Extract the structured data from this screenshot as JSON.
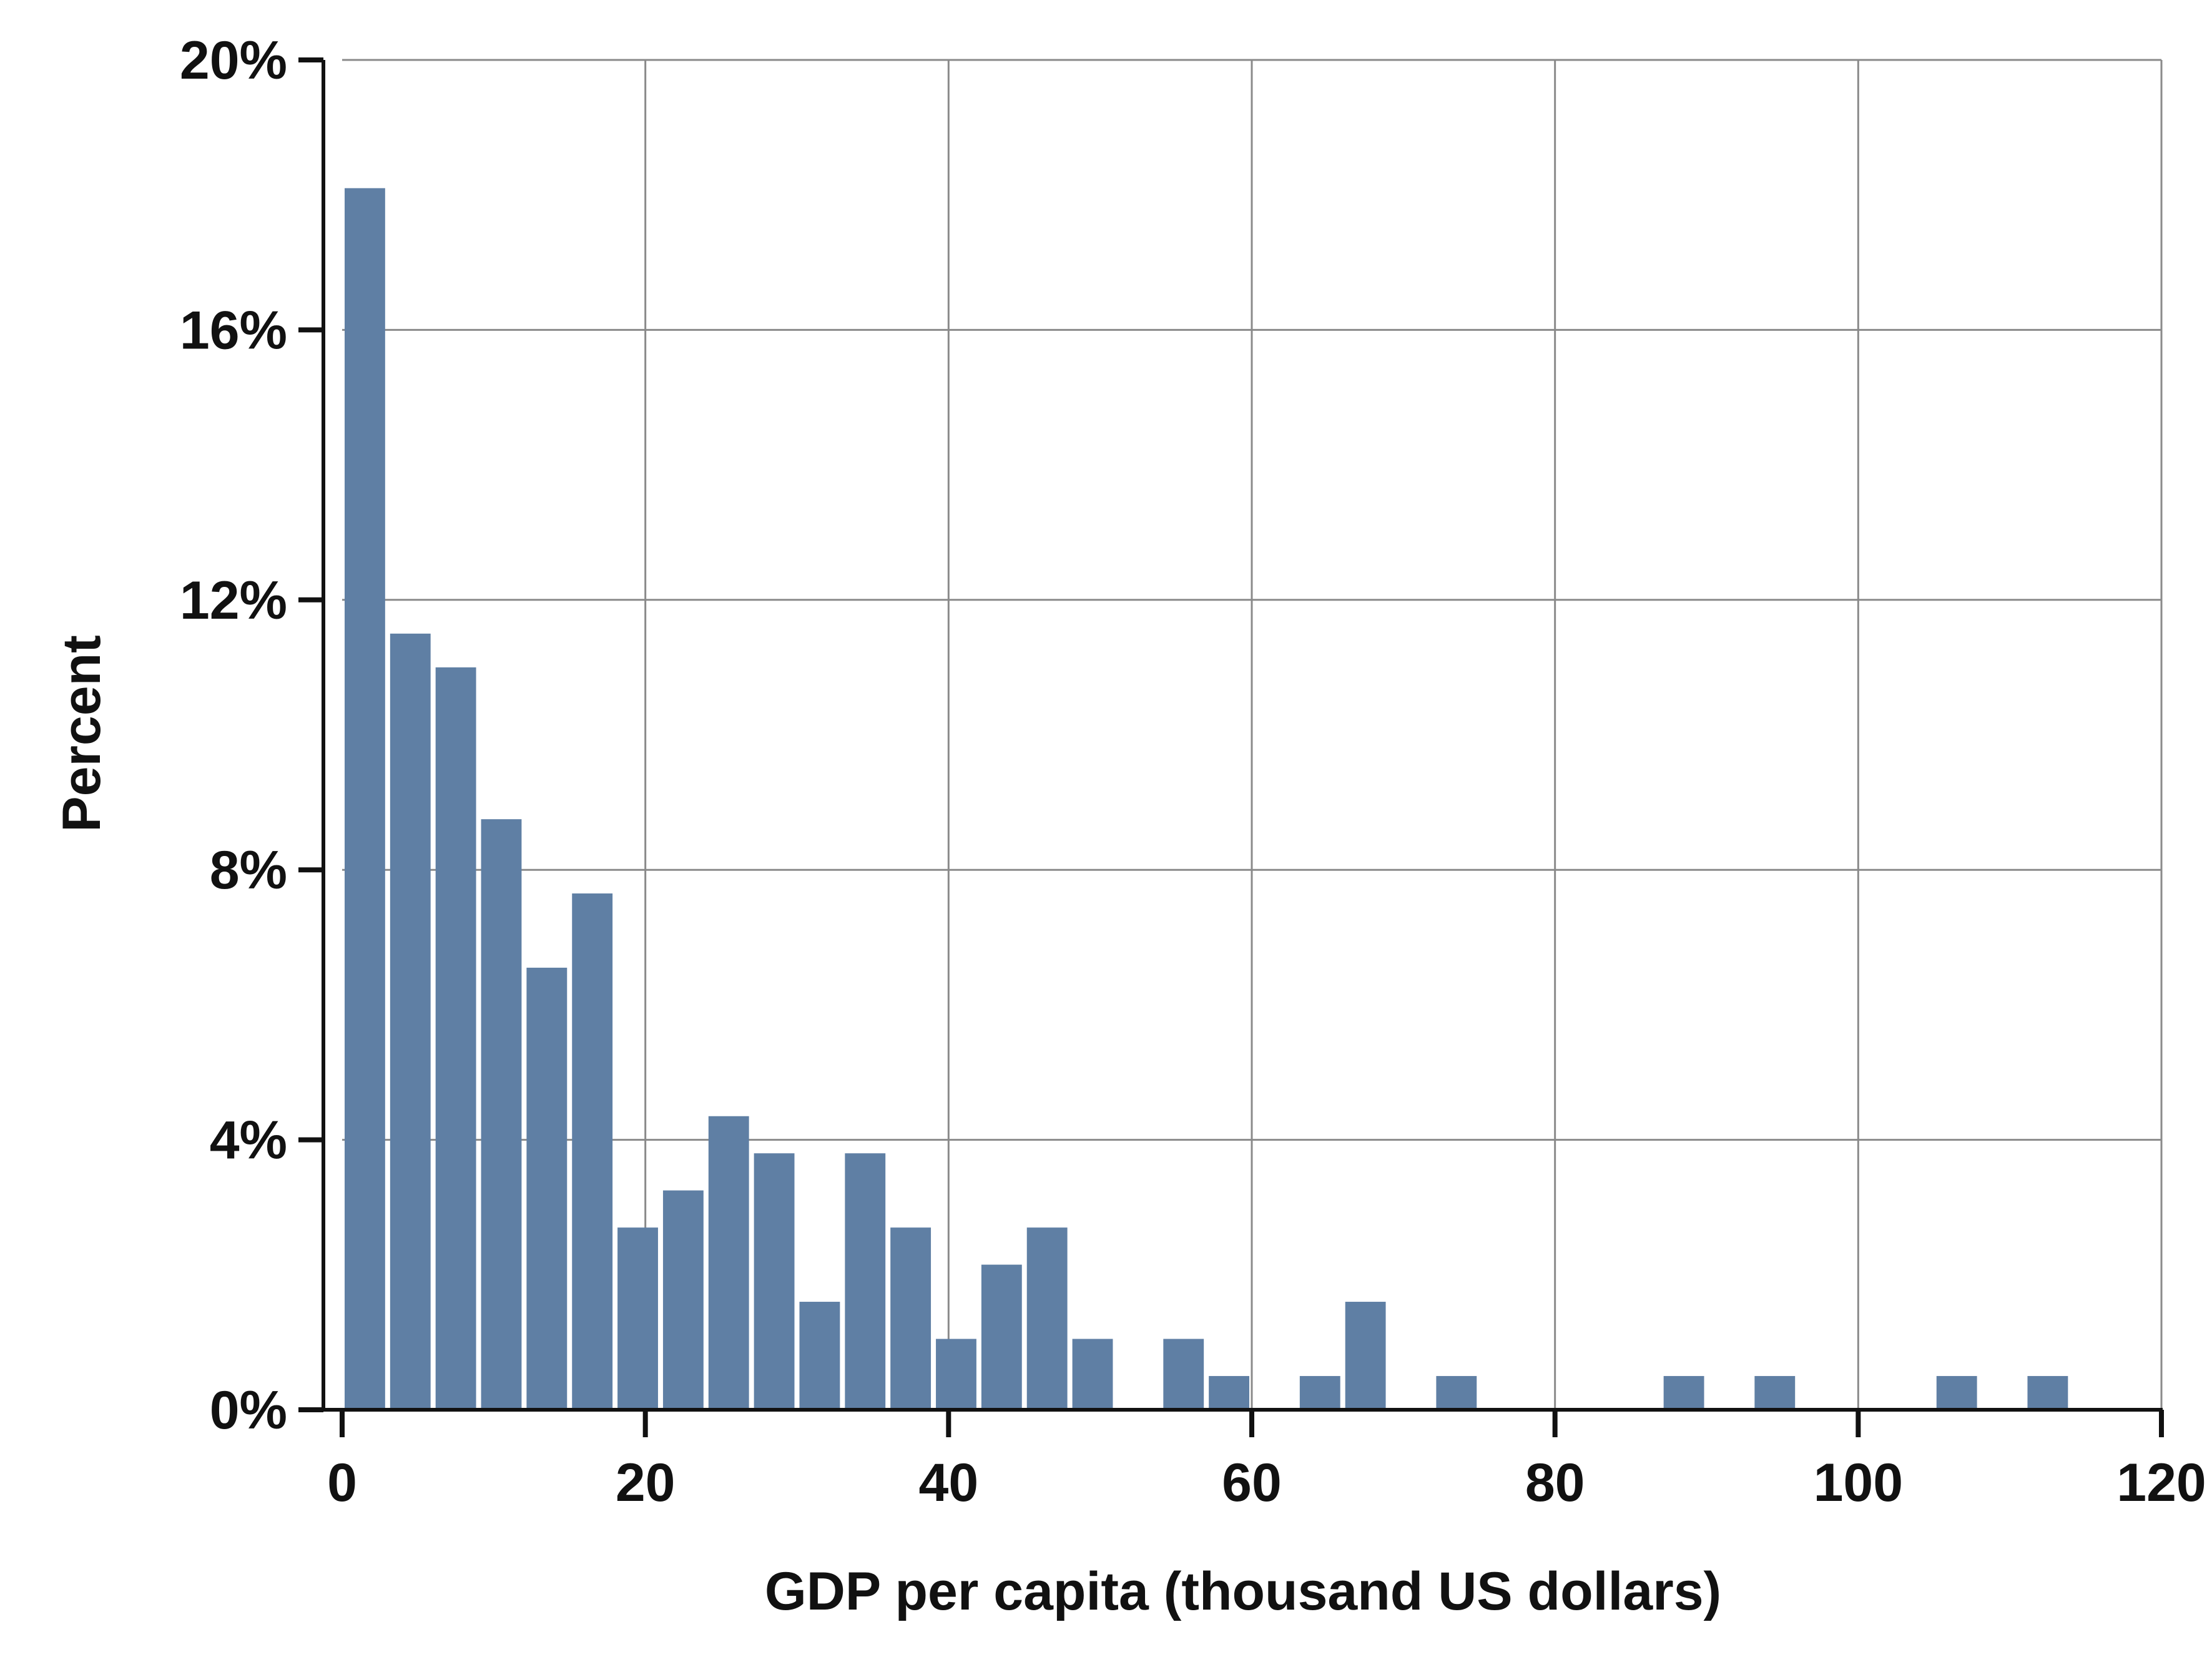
{
  "chart_data": {
    "type": "bar",
    "title": "",
    "xlabel": "GDP per capita (thousand US dollars)",
    "ylabel": "Percent",
    "xlim": [
      0,
      120
    ],
    "ylim": [
      0,
      20
    ],
    "x_ticks": [
      0,
      20,
      40,
      60,
      80,
      100,
      120
    ],
    "x_tick_labels": [
      "0",
      "20",
      "40",
      "60",
      "80",
      "100",
      "120"
    ],
    "y_ticks": [
      0,
      4,
      8,
      12,
      16,
      20
    ],
    "y_tick_labels": [
      "0%",
      "4%",
      "8%",
      "12%",
      "16%",
      "20%"
    ],
    "bin_width": 3,
    "bin_starts": [
      0,
      3,
      6,
      9,
      12,
      15,
      18,
      21,
      24,
      27,
      30,
      33,
      36,
      39,
      42,
      45,
      48,
      54,
      57,
      63,
      66,
      72,
      87,
      93,
      105,
      111
    ],
    "values": [
      18.1,
      11.5,
      11.0,
      8.75,
      6.55,
      7.65,
      2.7,
      3.25,
      4.35,
      3.8,
      1.6,
      3.8,
      2.7,
      1.05,
      2.15,
      2.7,
      1.05,
      1.05,
      0.5,
      0.5,
      1.6,
      0.5,
      0.5,
      0.5,
      0.5,
      0.5
    ],
    "grid": true,
    "legend": "none",
    "bar_color": "#5f7fa4",
    "grid_color": "#8a8a8a",
    "axis_color": "#111111"
  }
}
